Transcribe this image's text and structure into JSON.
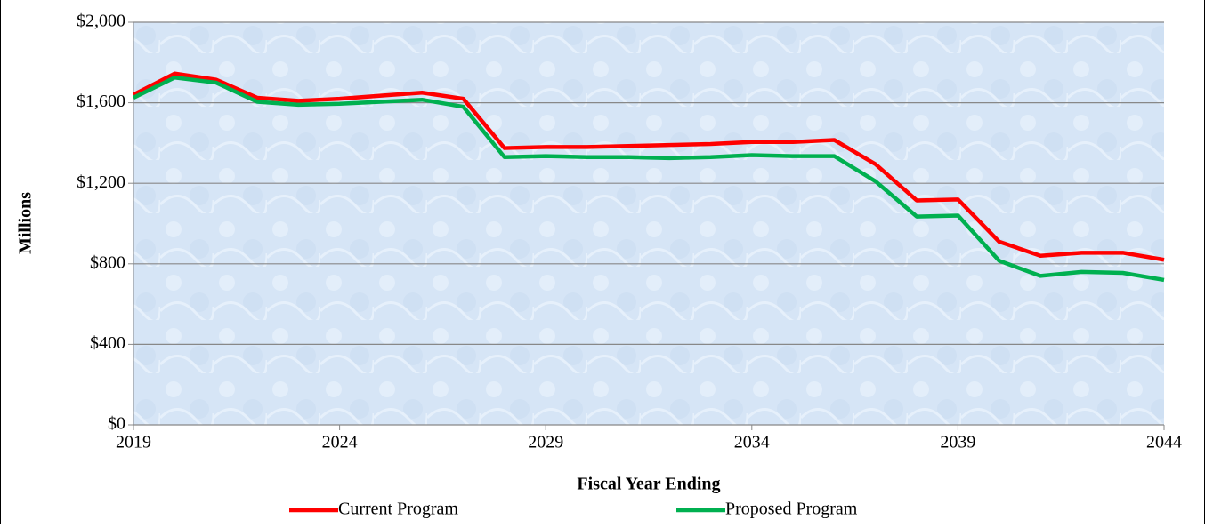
{
  "chart_data": {
    "type": "line",
    "x_label": "Fiscal Year Ending",
    "y_label": "Millions",
    "x": [
      2019,
      2020,
      2021,
      2022,
      2023,
      2024,
      2025,
      2026,
      2027,
      2028,
      2029,
      2030,
      2031,
      2032,
      2033,
      2034,
      2035,
      2036,
      2037,
      2038,
      2039,
      2040,
      2041,
      2042,
      2043,
      2044
    ],
    "series": [
      {
        "name": "Current Program",
        "color": "#ff0000",
        "values": [
          1640,
          1745,
          1715,
          1625,
          1610,
          1620,
          1635,
          1650,
          1620,
          1375,
          1380,
          1380,
          1385,
          1390,
          1395,
          1405,
          1405,
          1415,
          1295,
          1115,
          1120,
          910,
          840,
          855,
          855,
          820
        ]
      },
      {
        "name": "Proposed Program",
        "color": "#00b050",
        "values": [
          1625,
          1725,
          1700,
          1605,
          1590,
          1595,
          1605,
          1615,
          1580,
          1330,
          1335,
          1330,
          1330,
          1325,
          1330,
          1340,
          1335,
          1335,
          1210,
          1035,
          1040,
          815,
          740,
          760,
          755,
          720
        ]
      }
    ],
    "xlim": [
      2019,
      2044
    ],
    "xticks": [
      2019,
      2024,
      2029,
      2034,
      2039,
      2044
    ],
    "ylim": [
      0,
      2000
    ],
    "yticks": [
      {
        "value": 0,
        "label": "$0"
      },
      {
        "value": 400,
        "label": "$400"
      },
      {
        "value": 800,
        "label": "$800"
      },
      {
        "value": 1200,
        "label": "$1,200"
      },
      {
        "value": 1600,
        "label": "$1,600"
      },
      {
        "value": 2000,
        "label": "$2,000"
      }
    ],
    "grid": true,
    "legend": "bottom"
  }
}
